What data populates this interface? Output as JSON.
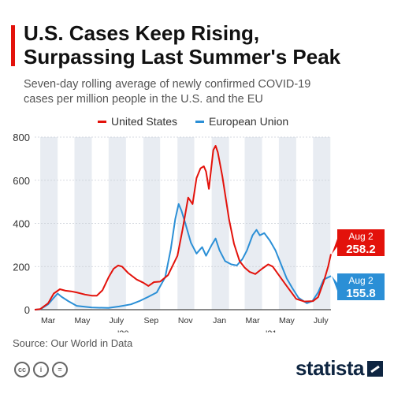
{
  "header": {
    "title_line1": "U.S. Cases Keep Rising,",
    "title_line2": "Surpassing Last Summer's Peak",
    "subtitle_line1": "Seven-day rolling average of newly confirmed COVID-19",
    "subtitle_line2": "cases per million people in the U.S. and the EU"
  },
  "colors": {
    "accent": "#e3120b",
    "us": "#e3120b",
    "eu": "#2b8fd6",
    "band": "#e8ecf2"
  },
  "chart_data": {
    "type": "line",
    "title": "",
    "xlabel": "",
    "ylabel": "",
    "ylim": [
      0,
      800
    ],
    "yticks": [
      0,
      200,
      400,
      600,
      800
    ],
    "grid": true,
    "legend": "top-center",
    "x_tick_labels": [
      "Mar",
      "May",
      "July",
      "Sep",
      "Nov",
      "Jan",
      "Mar",
      "May",
      "July"
    ],
    "year_labels": [
      "'20",
      "'21"
    ],
    "series": [
      {
        "name": "United States",
        "end_label": "Aug 2",
        "end_value": "258.2",
        "points": [
          [
            "2020-02-20",
            0
          ],
          [
            "2020-03-01",
            3
          ],
          [
            "2020-03-15",
            30
          ],
          [
            "2020-03-25",
            75
          ],
          [
            "2020-04-05",
            95
          ],
          [
            "2020-04-15",
            88
          ],
          [
            "2020-04-25",
            85
          ],
          [
            "2020-05-05",
            80
          ],
          [
            "2020-05-20",
            70
          ],
          [
            "2020-06-01",
            65
          ],
          [
            "2020-06-10",
            65
          ],
          [
            "2020-06-20",
            90
          ],
          [
            "2020-07-01",
            150
          ],
          [
            "2020-07-10",
            190
          ],
          [
            "2020-07-18",
            205
          ],
          [
            "2020-07-25",
            200
          ],
          [
            "2020-08-05",
            170
          ],
          [
            "2020-08-20",
            140
          ],
          [
            "2020-09-01",
            125
          ],
          [
            "2020-09-10",
            110
          ],
          [
            "2020-09-20",
            128
          ],
          [
            "2020-10-01",
            130
          ],
          [
            "2020-10-15",
            160
          ],
          [
            "2020-11-01",
            250
          ],
          [
            "2020-11-10",
            370
          ],
          [
            "2020-11-20",
            520
          ],
          [
            "2020-11-28",
            490
          ],
          [
            "2020-12-05",
            610
          ],
          [
            "2020-12-12",
            655
          ],
          [
            "2020-12-18",
            665
          ],
          [
            "2020-12-22",
            640
          ],
          [
            "2020-12-27",
            560
          ],
          [
            "2021-01-04",
            740
          ],
          [
            "2021-01-08",
            760
          ],
          [
            "2021-01-12",
            730
          ],
          [
            "2021-01-20",
            620
          ],
          [
            "2021-02-01",
            420
          ],
          [
            "2021-02-10",
            305
          ],
          [
            "2021-02-20",
            225
          ],
          [
            "2021-03-01",
            195
          ],
          [
            "2021-03-10",
            175
          ],
          [
            "2021-03-20",
            165
          ],
          [
            "2021-04-01",
            190
          ],
          [
            "2021-04-12",
            210
          ],
          [
            "2021-04-20",
            200
          ],
          [
            "2021-05-01",
            160
          ],
          [
            "2021-05-15",
            110
          ],
          [
            "2021-06-01",
            50
          ],
          [
            "2021-06-15",
            38
          ],
          [
            "2021-07-01",
            40
          ],
          [
            "2021-07-10",
            58
          ],
          [
            "2021-07-20",
            130
          ],
          [
            "2021-07-28",
            200
          ],
          [
            "2021-08-02",
            258
          ]
        ]
      },
      {
        "name": "European Union",
        "end_label": "Aug 2",
        "end_value": "155.8",
        "points": [
          [
            "2020-02-20",
            0
          ],
          [
            "2020-03-01",
            2
          ],
          [
            "2020-03-15",
            25
          ],
          [
            "2020-03-25",
            55
          ],
          [
            "2020-04-01",
            75
          ],
          [
            "2020-04-08",
            60
          ],
          [
            "2020-04-20",
            40
          ],
          [
            "2020-05-05",
            18
          ],
          [
            "2020-06-01",
            10
          ],
          [
            "2020-07-01",
            8
          ],
          [
            "2020-07-20",
            15
          ],
          [
            "2020-08-10",
            25
          ],
          [
            "2020-08-25",
            40
          ],
          [
            "2020-09-10",
            60
          ],
          [
            "2020-09-25",
            80
          ],
          [
            "2020-10-10",
            150
          ],
          [
            "2020-10-20",
            280
          ],
          [
            "2020-10-28",
            420
          ],
          [
            "2020-11-03",
            490
          ],
          [
            "2020-11-08",
            460
          ],
          [
            "2020-11-15",
            400
          ],
          [
            "2020-11-25",
            310
          ],
          [
            "2020-12-05",
            260
          ],
          [
            "2020-12-15",
            290
          ],
          [
            "2020-12-22",
            250
          ],
          [
            "2021-01-01",
            300
          ],
          [
            "2021-01-08",
            330
          ],
          [
            "2021-01-15",
            275
          ],
          [
            "2021-01-25",
            225
          ],
          [
            "2021-02-05",
            210
          ],
          [
            "2021-02-15",
            205
          ],
          [
            "2021-02-25",
            235
          ],
          [
            "2021-03-05",
            275
          ],
          [
            "2021-03-15",
            345
          ],
          [
            "2021-03-22",
            370
          ],
          [
            "2021-03-28",
            345
          ],
          [
            "2021-04-05",
            355
          ],
          [
            "2021-04-15",
            320
          ],
          [
            "2021-04-25",
            275
          ],
          [
            "2021-05-05",
            210
          ],
          [
            "2021-05-15",
            145
          ],
          [
            "2021-05-25",
            100
          ],
          [
            "2021-06-05",
            55
          ],
          [
            "2021-06-20",
            30
          ],
          [
            "2021-06-30",
            40
          ],
          [
            "2021-07-10",
            80
          ],
          [
            "2021-07-20",
            140
          ],
          [
            "2021-08-02",
            156
          ]
        ]
      }
    ]
  },
  "footer": {
    "source": "Source: Our World in Data",
    "cc_icons": [
      "cc-icon",
      "attribution-icon",
      "no-derivatives-icon"
    ],
    "logo": "statista"
  }
}
